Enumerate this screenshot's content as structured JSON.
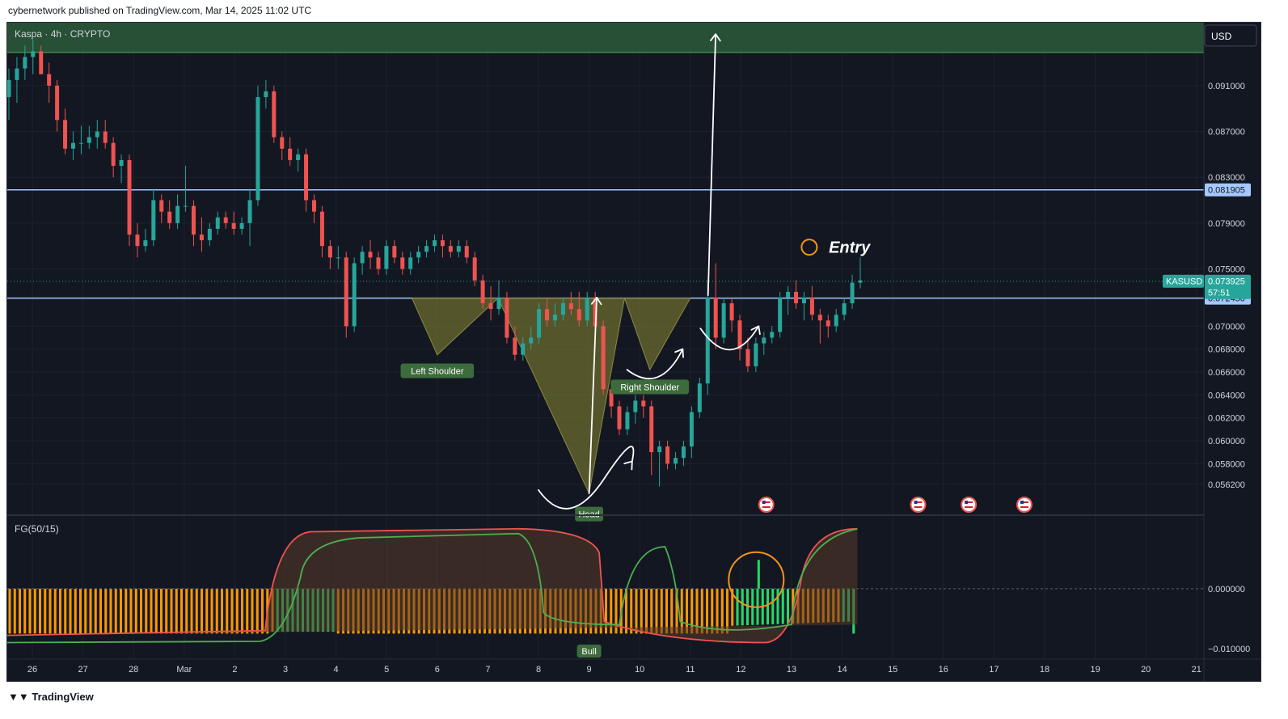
{
  "header": {
    "publisher_line": "cybernetwork published on TradingView.com, Mar 14, 2025 11:02 UTC"
  },
  "footer": {
    "logo_text": "TradingView"
  },
  "colors": {
    "background": "#131722",
    "up": "#26a69a",
    "down": "#ef5350",
    "hline": "#a4c8ff",
    "pattern_fill": "#6b6b2f",
    "entry": "#f7931a",
    "osc_orange": "#ff9800",
    "osc_green": "#26d96a",
    "label_green": "#3d6b3d"
  },
  "chart_data": [
    {
      "type": "candlestick",
      "title": "Kaspa · 4h · CRYPTO",
      "currency": "USD",
      "symbol": "KASUSD",
      "last_price": "0.073925",
      "countdown": "57:51",
      "ylim": [
        0.0535,
        0.0965
      ],
      "y_ticks": [
        "0.091000",
        "0.087000",
        "0.083000",
        "0.079000",
        "0.075000",
        "0.070000",
        "0.068000",
        "0.066000",
        "0.064000",
        "0.062000",
        "0.060000",
        "0.058000",
        "0.056200"
      ],
      "x_ticks": [
        "26",
        "27",
        "28",
        "Mar",
        "2",
        "3",
        "4",
        "5",
        "6",
        "7",
        "8",
        "9",
        "10",
        "11",
        "12",
        "13",
        "14",
        "15",
        "16",
        "17",
        "18",
        "19",
        "20",
        "21"
      ],
      "resistance_zone": [
        0.0939,
        0.0965
      ],
      "horizontal_lines": [
        {
          "value": 0.081905,
          "label": "0.081905"
        },
        {
          "value": 0.07245,
          "label": "0.072450"
        }
      ],
      "current_price_line": 0.073925,
      "pattern": {
        "left_shoulder": [
          [
            7.5,
            0.07245
          ],
          [
            8.0,
            0.0675
          ],
          [
            9.2,
            0.07245
          ]
        ],
        "head": [
          [
            9.2,
            0.07245
          ],
          [
            11.0,
            0.0554
          ],
          [
            11.7,
            0.07245
          ]
        ],
        "right_shoulder": [
          [
            11.7,
            0.07245
          ],
          [
            12.2,
            0.0662
          ],
          [
            13.0,
            0.07245
          ]
        ]
      },
      "annotations": [
        {
          "text": "Left Shoulder",
          "x": 8.0,
          "y": 0.0661
        },
        {
          "text": "Head",
          "x": 11.0,
          "y": 0.0536
        },
        {
          "text": "Right Shoulder",
          "x": 12.2,
          "y": 0.0647
        },
        {
          "text": "Entry",
          "x": 15.8,
          "y": 0.0769
        }
      ],
      "target_arrow": {
        "from": [
          13.35,
          0.0727
        ],
        "to": [
          13.5,
          0.0955
        ]
      },
      "candles_ohlc": [
        [
          0.09,
          0.0925,
          0.088,
          0.0915
        ],
        [
          0.0915,
          0.0935,
          0.0895,
          0.0925
        ],
        [
          0.0925,
          0.0945,
          0.0915,
          0.0935
        ],
        [
          0.0935,
          0.095,
          0.092,
          0.094
        ],
        [
          0.094,
          0.0945,
          0.092,
          0.092
        ],
        [
          0.092,
          0.093,
          0.0895,
          0.091
        ],
        [
          0.091,
          0.0915,
          0.087,
          0.088
        ],
        [
          0.088,
          0.089,
          0.085,
          0.0855
        ],
        [
          0.0855,
          0.087,
          0.0845,
          0.086
        ],
        [
          0.086,
          0.0875,
          0.085,
          0.086
        ],
        [
          0.086,
          0.0875,
          0.0855,
          0.0865
        ],
        [
          0.0865,
          0.088,
          0.0855,
          0.087
        ],
        [
          0.087,
          0.088,
          0.0855,
          0.086
        ],
        [
          0.086,
          0.0865,
          0.083,
          0.084
        ],
        [
          0.084,
          0.085,
          0.0825,
          0.0845
        ],
        [
          0.0845,
          0.085,
          0.077,
          0.078
        ],
        [
          0.078,
          0.079,
          0.076,
          0.077
        ],
        [
          0.077,
          0.0785,
          0.0765,
          0.0775
        ],
        [
          0.0775,
          0.082,
          0.077,
          0.081
        ],
        [
          0.081,
          0.0815,
          0.079,
          0.08
        ],
        [
          0.08,
          0.081,
          0.0785,
          0.079
        ],
        [
          0.079,
          0.0815,
          0.0785,
          0.0805
        ],
        [
          0.0805,
          0.084,
          0.08,
          0.0805
        ],
        [
          0.0805,
          0.081,
          0.077,
          0.078
        ],
        [
          0.078,
          0.0795,
          0.0765,
          0.0775
        ],
        [
          0.0775,
          0.079,
          0.077,
          0.0785
        ],
        [
          0.0785,
          0.08,
          0.078,
          0.0795
        ],
        [
          0.0795,
          0.08,
          0.0785,
          0.079
        ],
        [
          0.079,
          0.08,
          0.078,
          0.0785
        ],
        [
          0.0785,
          0.0795,
          0.078,
          0.079
        ],
        [
          0.079,
          0.082,
          0.077,
          0.081
        ],
        [
          0.081,
          0.091,
          0.0805,
          0.09
        ],
        [
          0.09,
          0.0915,
          0.089,
          0.0905
        ],
        [
          0.0905,
          0.091,
          0.086,
          0.0865
        ],
        [
          0.0865,
          0.087,
          0.0845,
          0.0855
        ],
        [
          0.0855,
          0.0865,
          0.084,
          0.0845
        ],
        [
          0.0845,
          0.0855,
          0.0835,
          0.085
        ],
        [
          0.085,
          0.0855,
          0.08,
          0.081
        ],
        [
          0.081,
          0.0815,
          0.079,
          0.08
        ],
        [
          0.08,
          0.0805,
          0.076,
          0.077
        ],
        [
          0.077,
          0.0775,
          0.075,
          0.076
        ],
        [
          0.076,
          0.077,
          0.075,
          0.076
        ],
        [
          0.076,
          0.0765,
          0.069,
          0.07
        ],
        [
          0.07,
          0.076,
          0.0695,
          0.0755
        ],
        [
          0.0755,
          0.077,
          0.0745,
          0.0765
        ],
        [
          0.0765,
          0.0775,
          0.075,
          0.076
        ],
        [
          0.076,
          0.0765,
          0.0745,
          0.075
        ],
        [
          0.075,
          0.0775,
          0.0745,
          0.077
        ],
        [
          0.077,
          0.0775,
          0.0755,
          0.076
        ],
        [
          0.076,
          0.0765,
          0.0745,
          0.075
        ],
        [
          0.075,
          0.0765,
          0.0745,
          0.076
        ],
        [
          0.076,
          0.077,
          0.0755,
          0.0765
        ],
        [
          0.0765,
          0.0775,
          0.076,
          0.077
        ],
        [
          0.077,
          0.078,
          0.0765,
          0.0775
        ],
        [
          0.0775,
          0.078,
          0.076,
          0.077
        ],
        [
          0.077,
          0.0775,
          0.076,
          0.0765
        ],
        [
          0.0765,
          0.0775,
          0.076,
          0.077
        ],
        [
          0.077,
          0.0775,
          0.0755,
          0.076
        ],
        [
          0.076,
          0.0765,
          0.0735,
          0.074
        ],
        [
          0.074,
          0.0745,
          0.0715,
          0.072
        ],
        [
          0.072,
          0.0735,
          0.0705,
          0.0715
        ],
        [
          0.0715,
          0.074,
          0.071,
          0.0725
        ],
        [
          0.0725,
          0.073,
          0.0685,
          0.069
        ],
        [
          0.069,
          0.07,
          0.067,
          0.0675
        ],
        [
          0.0675,
          0.069,
          0.067,
          0.0685
        ],
        [
          0.0685,
          0.07,
          0.068,
          0.069
        ],
        [
          0.069,
          0.072,
          0.0685,
          0.0715
        ],
        [
          0.0715,
          0.0725,
          0.07,
          0.0705
        ],
        [
          0.0705,
          0.072,
          0.07,
          0.071
        ],
        [
          0.071,
          0.0725,
          0.0705,
          0.072
        ],
        [
          0.072,
          0.073,
          0.071,
          0.0715
        ],
        [
          0.0715,
          0.073,
          0.07,
          0.0705
        ],
        [
          0.0705,
          0.073,
          0.07,
          0.0725
        ],
        [
          0.0725,
          0.073,
          0.0695,
          0.07
        ],
        [
          0.07,
          0.0705,
          0.064,
          0.0645
        ],
        [
          0.0645,
          0.065,
          0.062,
          0.063
        ],
        [
          0.063,
          0.0635,
          0.0605,
          0.061
        ],
        [
          0.061,
          0.063,
          0.0605,
          0.0625
        ],
        [
          0.0625,
          0.064,
          0.0615,
          0.0635
        ],
        [
          0.0635,
          0.064,
          0.062,
          0.063
        ],
        [
          0.063,
          0.0635,
          0.057,
          0.059
        ],
        [
          0.059,
          0.06,
          0.056,
          0.0595
        ],
        [
          0.0595,
          0.06,
          0.0575,
          0.058
        ],
        [
          0.058,
          0.059,
          0.0575,
          0.0585
        ],
        [
          0.0585,
          0.06,
          0.0578,
          0.0595
        ],
        [
          0.0595,
          0.063,
          0.0585,
          0.0625
        ],
        [
          0.0625,
          0.0655,
          0.062,
          0.065
        ],
        [
          0.065,
          0.074,
          0.064,
          0.0725
        ],
        [
          0.0725,
          0.0755,
          0.068,
          0.069
        ],
        [
          0.069,
          0.0725,
          0.0685,
          0.072
        ],
        [
          0.072,
          0.0725,
          0.0695,
          0.0705
        ],
        [
          0.0705,
          0.071,
          0.067,
          0.068
        ],
        [
          0.068,
          0.069,
          0.066,
          0.0665
        ],
        [
          0.0665,
          0.069,
          0.066,
          0.0685
        ],
        [
          0.0685,
          0.0695,
          0.0675,
          0.069
        ],
        [
          0.069,
          0.07,
          0.0685,
          0.0695
        ],
        [
          0.0695,
          0.073,
          0.069,
          0.0725
        ],
        [
          0.0725,
          0.0735,
          0.071,
          0.073
        ],
        [
          0.073,
          0.074,
          0.0715,
          0.072
        ],
        [
          0.072,
          0.073,
          0.0705,
          0.0725
        ],
        [
          0.0725,
          0.0735,
          0.0705,
          0.071
        ],
        [
          0.071,
          0.0715,
          0.0685,
          0.0705
        ],
        [
          0.0705,
          0.071,
          0.069,
          0.07
        ],
        [
          0.07,
          0.0715,
          0.0695,
          0.071
        ],
        [
          0.071,
          0.0725,
          0.0705,
          0.072
        ],
        [
          0.072,
          0.0745,
          0.0715,
          0.0738
        ],
        [
          0.0738,
          0.076,
          0.0733,
          0.074
        ]
      ]
    },
    {
      "type": "oscillator",
      "title": "FG(50/15)",
      "y_ticks": [
        "0.000000",
        "−0.010000"
      ],
      "ylim": [
        -0.0115,
        0.012
      ],
      "zero_line": 0.0,
      "bar_colors": "orange when bearish, green when bullish",
      "annotation": {
        "text": "Bull",
        "x": 11.0
      },
      "last_bar": {
        "x": 14.35,
        "value": 0.0048
      }
    }
  ]
}
